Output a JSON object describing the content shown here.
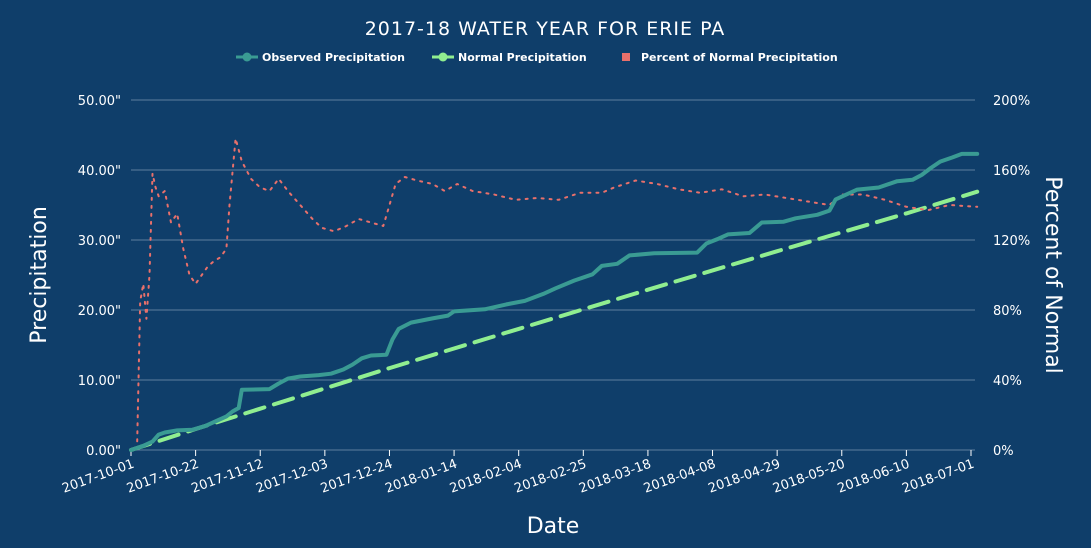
{
  "chart_data": {
    "type": "line",
    "title": "2017-18 WATER YEAR FOR ERIE PA",
    "xlabel": "Date",
    "ylabel": "Precipitation",
    "y2label": "Percent of Normal",
    "ylim": [
      0,
      50
    ],
    "y2lim": [
      0,
      200
    ],
    "grid": true,
    "legend_position": "top",
    "background_color": "#0f3e6a",
    "x_ticks": [
      "2017-10-01",
      "2017-10-22",
      "2017-11-12",
      "2017-12-03",
      "2017-12-24",
      "2018-01-14",
      "2018-02-04",
      "2018-02-25",
      "2018-03-18",
      "2018-04-08",
      "2018-04-29",
      "2018-05-20",
      "2018-06-10",
      "2018-07-01"
    ],
    "y_ticks": [
      "0.00\"",
      "10.00\"",
      "20.00\"",
      "30.00\"",
      "40.00\"",
      "50.00\""
    ],
    "y2_ticks": [
      "0%",
      "40%",
      "80%",
      "120%",
      "160%",
      "200%"
    ],
    "series": [
      {
        "name": "Observed Precipitation",
        "color": "#3a9b93",
        "style": "solid",
        "points": [
          [
            "2017-10-01",
            0.0
          ],
          [
            "2017-10-05",
            0.6
          ],
          [
            "2017-10-08",
            1.2
          ],
          [
            "2017-10-10",
            2.2
          ],
          [
            "2017-10-12",
            2.5
          ],
          [
            "2017-10-16",
            2.8
          ],
          [
            "2017-10-21",
            2.9
          ],
          [
            "2017-10-25",
            3.4
          ],
          [
            "2017-10-28",
            4.0
          ],
          [
            "2017-11-01",
            4.8
          ],
          [
            "2017-11-03",
            5.5
          ],
          [
            "2017-11-05",
            6.0
          ],
          [
            "2017-11-06",
            8.6
          ],
          [
            "2017-11-15",
            8.7
          ],
          [
            "2017-11-18",
            9.5
          ],
          [
            "2017-11-21",
            10.2
          ],
          [
            "2017-11-25",
            10.5
          ],
          [
            "2017-12-01",
            10.7
          ],
          [
            "2017-12-05",
            10.9
          ],
          [
            "2017-12-09",
            11.5
          ],
          [
            "2017-12-12",
            12.2
          ],
          [
            "2017-12-15",
            13.1
          ],
          [
            "2017-12-18",
            13.5
          ],
          [
            "2017-12-23",
            13.6
          ],
          [
            "2017-12-25",
            15.8
          ],
          [
            "2017-12-27",
            17.3
          ],
          [
            "2017-12-31",
            18.2
          ],
          [
            "2018-01-07",
            18.8
          ],
          [
            "2018-01-12",
            19.2
          ],
          [
            "2018-01-14",
            19.8
          ],
          [
            "2018-01-24",
            20.1
          ],
          [
            "2018-01-31",
            20.8
          ],
          [
            "2018-02-06",
            21.3
          ],
          [
            "2018-02-12",
            22.3
          ],
          [
            "2018-02-16",
            23.1
          ],
          [
            "2018-02-22",
            24.2
          ],
          [
            "2018-02-28",
            25.1
          ],
          [
            "2018-03-03",
            26.3
          ],
          [
            "2018-03-08",
            26.6
          ],
          [
            "2018-03-12",
            27.8
          ],
          [
            "2018-03-20",
            28.1
          ],
          [
            "2018-04-03",
            28.2
          ],
          [
            "2018-04-06",
            29.5
          ],
          [
            "2018-04-10",
            30.2
          ],
          [
            "2018-04-13",
            30.8
          ],
          [
            "2018-04-20",
            31.0
          ],
          [
            "2018-04-24",
            32.5
          ],
          [
            "2018-05-01",
            32.6
          ],
          [
            "2018-05-05",
            33.1
          ],
          [
            "2018-05-12",
            33.6
          ],
          [
            "2018-05-16",
            34.2
          ],
          [
            "2018-05-18",
            35.8
          ],
          [
            "2018-05-22",
            36.6
          ],
          [
            "2018-05-25",
            37.2
          ],
          [
            "2018-06-01",
            37.5
          ],
          [
            "2018-06-07",
            38.4
          ],
          [
            "2018-06-12",
            38.6
          ],
          [
            "2018-06-15",
            39.3
          ],
          [
            "2018-06-18",
            40.3
          ],
          [
            "2018-06-21",
            41.2
          ],
          [
            "2018-06-25",
            41.8
          ],
          [
            "2018-06-28",
            42.3
          ],
          [
            "2018-07-03",
            42.3
          ]
        ]
      },
      {
        "name": "Normal Precipitation",
        "color": "#90ee90",
        "style": "dashed",
        "points": [
          [
            "2017-10-01",
            0.0
          ],
          [
            "2017-10-22",
            3.0
          ],
          [
            "2017-11-12",
            5.9
          ],
          [
            "2017-12-24",
            11.7
          ],
          [
            "2018-02-04",
            17.3
          ],
          [
            "2018-03-18",
            22.9
          ],
          [
            "2018-04-29",
            28.4
          ],
          [
            "2018-06-10",
            33.8
          ],
          [
            "2018-07-03",
            36.9
          ]
        ]
      },
      {
        "name": "Percent of Normal Precipitation",
        "color": "#e8706b",
        "style": "dotted",
        "axis": "right",
        "points": [
          [
            "2017-10-03",
            5
          ],
          [
            "2017-10-04",
            85
          ],
          [
            "2017-10-05",
            95
          ],
          [
            "2017-10-06",
            75
          ],
          [
            "2017-10-07",
            100
          ],
          [
            "2017-10-08",
            158
          ],
          [
            "2017-10-09",
            150
          ],
          [
            "2017-10-10",
            145
          ],
          [
            "2017-10-12",
            148
          ],
          [
            "2017-10-14",
            130
          ],
          [
            "2017-10-16",
            135
          ],
          [
            "2017-10-18",
            115
          ],
          [
            "2017-10-20",
            100
          ],
          [
            "2017-10-22",
            95
          ],
          [
            "2017-10-24",
            100
          ],
          [
            "2017-10-26",
            105
          ],
          [
            "2017-10-28",
            108
          ],
          [
            "2017-10-30",
            110
          ],
          [
            "2017-11-01",
            115
          ],
          [
            "2017-11-02",
            140
          ],
          [
            "2017-11-04",
            178
          ],
          [
            "2017-11-06",
            165
          ],
          [
            "2017-11-09",
            155
          ],
          [
            "2017-11-12",
            150
          ],
          [
            "2017-11-15",
            148
          ],
          [
            "2017-11-18",
            155
          ],
          [
            "2017-11-21",
            148
          ],
          [
            "2017-11-25",
            140
          ],
          [
            "2017-11-29",
            132
          ],
          [
            "2017-12-02",
            127
          ],
          [
            "2017-12-06",
            125
          ],
          [
            "2017-12-10",
            128
          ],
          [
            "2017-12-14",
            132
          ],
          [
            "2017-12-18",
            130
          ],
          [
            "2017-12-22",
            128
          ],
          [
            "2017-12-24",
            140
          ],
          [
            "2017-12-26",
            152
          ],
          [
            "2017-12-29",
            156
          ],
          [
            "2018-01-02",
            154
          ],
          [
            "2018-01-07",
            152
          ],
          [
            "2018-01-11",
            148
          ],
          [
            "2018-01-15",
            152
          ],
          [
            "2018-01-20",
            148
          ],
          [
            "2018-01-27",
            146
          ],
          [
            "2018-02-03",
            143
          ],
          [
            "2018-02-10",
            144
          ],
          [
            "2018-02-17",
            143
          ],
          [
            "2018-02-24",
            147
          ],
          [
            "2018-03-03",
            147
          ],
          [
            "2018-03-07",
            150
          ],
          [
            "2018-03-14",
            154
          ],
          [
            "2018-03-21",
            152
          ],
          [
            "2018-03-28",
            149
          ],
          [
            "2018-04-04",
            147
          ],
          [
            "2018-04-11",
            149
          ],
          [
            "2018-04-18",
            145
          ],
          [
            "2018-04-25",
            146
          ],
          [
            "2018-05-02",
            144
          ],
          [
            "2018-05-09",
            142
          ],
          [
            "2018-05-16",
            140
          ],
          [
            "2018-05-20",
            146
          ],
          [
            "2018-05-27",
            146
          ],
          [
            "2018-06-03",
            143
          ],
          [
            "2018-06-10",
            139
          ],
          [
            "2018-06-17",
            137
          ],
          [
            "2018-06-24",
            140
          ],
          [
            "2018-07-03",
            139
          ]
        ]
      }
    ]
  }
}
